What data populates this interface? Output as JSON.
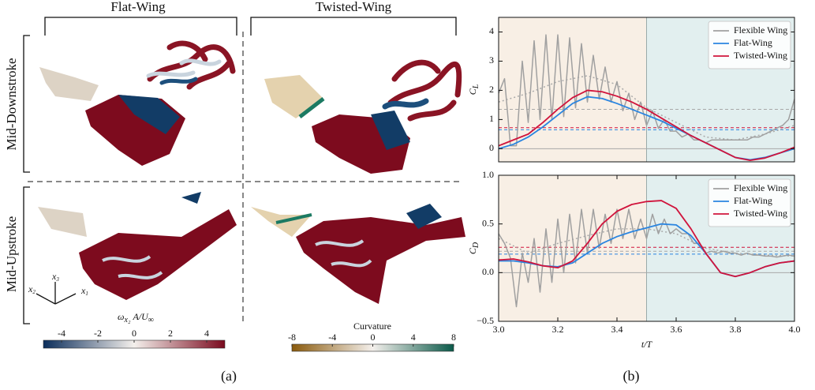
{
  "panel_a": {
    "column_titles": [
      "Flat-Wing",
      "Twisted-Wing"
    ],
    "row_titles": [
      "Mid-Downstroke",
      "Mid-Upstroke"
    ],
    "axes_triad": [
      {
        "symbol": "x",
        "index": "1"
      },
      {
        "symbol": "x",
        "index": "2"
      },
      {
        "symbol": "x",
        "index": "3"
      }
    ],
    "colorbar_vorticity": {
      "symbol": "ω",
      "sub": "x₂",
      "rest": "A/U",
      "rest_sub": "∞",
      "lim": [
        -5,
        5
      ],
      "ticks": [
        -4,
        -2,
        0,
        2,
        4
      ],
      "colors": [
        "#0b2d5b",
        "#f4f0ec",
        "#7a0a1e"
      ]
    },
    "colorbar_curvature": {
      "label": "Curvature",
      "lim": [
        -8,
        8
      ],
      "ticks": [
        -8,
        -4,
        0,
        4,
        8
      ],
      "colors": [
        "#8a5a0c",
        "#f4f0ec",
        "#0b5a4a"
      ]
    },
    "caption": "(a)"
  },
  "panel_b_caption": "(b)",
  "chart_data": [
    {
      "type": "line",
      "ylabel": "C",
      "ylabel_sub": "L",
      "xlim": [
        3.0,
        4.0
      ],
      "ylim": [
        -0.45,
        4.5
      ],
      "yticks": [
        0,
        1,
        2,
        3,
        4
      ],
      "legend": "upper right",
      "shaded_regions": [
        {
          "xlim": [
            3.0,
            3.5
          ],
          "color": "#f8efe5"
        },
        {
          "xlim": [
            3.5,
            4.0
          ],
          "color": "#e2efef"
        }
      ],
      "hlines": [
        {
          "value": 0,
          "color": "#a8a8a8",
          "style": "solid"
        },
        {
          "value": 1.35,
          "color": "#a8a8a8",
          "style": "dashed"
        },
        {
          "value": 0.72,
          "color": "#d0143c",
          "style": "dashed"
        },
        {
          "value": 0.65,
          "color": "#2a85e0",
          "style": "dashed"
        }
      ],
      "series": [
        {
          "color": "#aaaaaa",
          "style": "dotted",
          "x": [
            3.0,
            3.1,
            3.2,
            3.3,
            3.4,
            3.5,
            3.6,
            3.7,
            3.8,
            3.9,
            4.0
          ],
          "values": [
            1.6,
            1.9,
            2.3,
            2.5,
            2.2,
            1.4,
            0.9,
            0.4,
            0.3,
            0.5,
            0.8
          ]
        },
        {
          "name": "Flexible Wing",
          "color": "#a0a0a0",
          "style": "solid",
          "x": [
            3.0,
            3.02,
            3.04,
            3.06,
            3.08,
            3.1,
            3.12,
            3.14,
            3.16,
            3.18,
            3.2,
            3.22,
            3.24,
            3.26,
            3.28,
            3.3,
            3.32,
            3.34,
            3.36,
            3.38,
            3.4,
            3.42,
            3.44,
            3.46,
            3.48,
            3.5,
            3.52,
            3.54,
            3.56,
            3.58,
            3.6,
            3.62,
            3.64,
            3.66,
            3.68,
            3.7,
            3.72,
            3.74,
            3.76,
            3.78,
            3.8,
            3.82,
            3.84,
            3.86,
            3.88,
            3.9,
            3.92,
            3.94,
            3.96,
            3.98,
            4.0
          ],
          "values": [
            1.9,
            2.4,
            0.1,
            0.1,
            3.0,
            0.9,
            3.7,
            1.0,
            3.9,
            1.0,
            3.9,
            1.1,
            3.8,
            1.4,
            3.6,
            1.6,
            3.2,
            1.7,
            2.8,
            1.6,
            2.3,
            1.3,
            1.9,
            1.0,
            1.6,
            0.8,
            1.3,
            0.7,
            1.0,
            0.6,
            0.6,
            0.4,
            0.5,
            0.3,
            0.3,
            0.2,
            0.3,
            0.3,
            0.3,
            0.3,
            0.3,
            0.3,
            0.3,
            0.4,
            0.4,
            0.5,
            0.6,
            0.7,
            0.8,
            1.0,
            1.7
          ]
        },
        {
          "name": "Flat-Wing",
          "color": "#2a85e0",
          "style": "solid",
          "x": [
            3.0,
            3.05,
            3.1,
            3.15,
            3.2,
            3.25,
            3.3,
            3.35,
            3.4,
            3.45,
            3.5,
            3.55,
            3.6,
            3.65,
            3.7,
            3.75,
            3.8,
            3.85,
            3.9,
            3.95,
            4.0
          ],
          "values": [
            0.0,
            0.15,
            0.4,
            0.75,
            1.15,
            1.55,
            1.78,
            1.72,
            1.55,
            1.35,
            1.15,
            0.95,
            0.7,
            0.45,
            0.2,
            -0.05,
            -0.3,
            -0.38,
            -0.3,
            -0.15,
            0.0
          ]
        },
        {
          "name": "Twisted-Wing",
          "color": "#d0143c",
          "style": "solid",
          "x": [
            3.0,
            3.05,
            3.1,
            3.15,
            3.2,
            3.25,
            3.3,
            3.35,
            3.4,
            3.45,
            3.5,
            3.55,
            3.6,
            3.65,
            3.7,
            3.75,
            3.8,
            3.85,
            3.9,
            3.95,
            4.0
          ],
          "values": [
            0.1,
            0.3,
            0.5,
            0.9,
            1.35,
            1.75,
            2.0,
            1.95,
            1.8,
            1.6,
            1.35,
            1.05,
            0.75,
            0.45,
            0.2,
            -0.05,
            -0.3,
            -0.4,
            -0.32,
            -0.15,
            0.05
          ]
        }
      ]
    },
    {
      "type": "line",
      "ylabel": "C",
      "ylabel_sub": "D",
      "xlabel": "t/T",
      "xlim": [
        3.0,
        4.0
      ],
      "ylim": [
        -0.5,
        1.0
      ],
      "xticks": [
        {
          "value": 3.0,
          "label": "3.0"
        },
        3.2,
        3.4,
        3.6,
        3.8,
        {
          "value": 4.0,
          "label": "4.0"
        }
      ],
      "yticks": [
        {
          "value": -0.5,
          "label": "−0.5"
        },
        {
          "value": 0,
          "label": "0.0"
        },
        0.5,
        {
          "value": 1.0,
          "label": "1.0"
        }
      ],
      "legend": "upper right",
      "shaded_regions": [
        {
          "xlim": [
            3.0,
            3.5
          ],
          "color": "#f8efe5"
        },
        {
          "xlim": [
            3.5,
            4.0
          ],
          "color": "#e2efef"
        }
      ],
      "hlines": [
        {
          "value": 0,
          "color": "#a8a8a8",
          "style": "solid"
        },
        {
          "value": 0.22,
          "color": "#a8a8a8",
          "style": "dashed"
        },
        {
          "value": 0.26,
          "color": "#d0143c",
          "style": "dashed"
        },
        {
          "value": 0.19,
          "color": "#2a85e0",
          "style": "dashed"
        }
      ],
      "series": [
        {
          "color": "#aaaaaa",
          "style": "dotted",
          "x": [
            3.0,
            3.1,
            3.2,
            3.3,
            3.4,
            3.5,
            3.6,
            3.7,
            3.8,
            3.9,
            4.0
          ],
          "values": [
            0.35,
            0.2,
            0.3,
            0.38,
            0.45,
            0.45,
            0.4,
            0.25,
            0.2,
            0.18,
            0.17
          ]
        },
        {
          "name": "Flexible Wing",
          "color": "#a0a0a0",
          "style": "solid",
          "x": [
            3.0,
            3.02,
            3.04,
            3.06,
            3.08,
            3.1,
            3.12,
            3.14,
            3.16,
            3.18,
            3.2,
            3.22,
            3.24,
            3.26,
            3.28,
            3.3,
            3.32,
            3.34,
            3.36,
            3.38,
            3.4,
            3.42,
            3.44,
            3.46,
            3.48,
            3.5,
            3.52,
            3.54,
            3.56,
            3.58,
            3.6,
            3.62,
            3.64,
            3.66,
            3.68,
            3.7,
            3.72,
            3.74,
            3.76,
            3.78,
            3.8,
            3.82,
            3.84,
            3.86,
            3.88,
            3.9,
            3.92,
            3.94,
            3.96,
            3.98,
            4.0
          ],
          "values": [
            0.4,
            0.3,
            0.15,
            -0.35,
            0.2,
            -0.1,
            0.35,
            -0.2,
            0.45,
            -0.1,
            0.55,
            0.0,
            0.6,
            0.1,
            0.65,
            0.2,
            0.65,
            0.25,
            0.6,
            0.3,
            0.65,
            0.35,
            0.65,
            0.35,
            0.55,
            0.35,
            0.6,
            0.4,
            0.55,
            0.4,
            0.45,
            0.4,
            0.4,
            0.3,
            0.3,
            0.2,
            0.22,
            0.2,
            0.22,
            0.2,
            0.2,
            0.18,
            0.2,
            0.18,
            0.18,
            0.17,
            0.17,
            0.16,
            0.17,
            0.18,
            0.17
          ]
        },
        {
          "name": "Flat-Wing",
          "color": "#2a85e0",
          "style": "solid",
          "x": [
            3.0,
            3.05,
            3.1,
            3.15,
            3.2,
            3.25,
            3.3,
            3.35,
            3.4,
            3.45,
            3.5,
            3.55,
            3.6,
            3.65,
            3.7,
            3.75,
            3.8,
            3.85,
            3.9,
            3.95,
            4.0
          ],
          "values": [
            0.12,
            0.12,
            0.1,
            0.07,
            0.06,
            0.1,
            0.2,
            0.3,
            0.37,
            0.42,
            0.46,
            0.5,
            0.49,
            0.38,
            0.2,
            0.0,
            -0.04,
            0.0,
            0.06,
            0.1,
            0.12
          ]
        },
        {
          "name": "Twisted-Wing",
          "color": "#d0143c",
          "style": "solid",
          "x": [
            3.0,
            3.05,
            3.1,
            3.15,
            3.2,
            3.25,
            3.3,
            3.35,
            3.4,
            3.45,
            3.5,
            3.55,
            3.6,
            3.65,
            3.7,
            3.75,
            3.8,
            3.85,
            3.9,
            3.95,
            4.0
          ],
          "values": [
            0.13,
            0.14,
            0.11,
            0.07,
            0.05,
            0.12,
            0.3,
            0.5,
            0.63,
            0.7,
            0.73,
            0.74,
            0.66,
            0.45,
            0.2,
            0.0,
            -0.04,
            0.0,
            0.06,
            0.1,
            0.12
          ]
        }
      ]
    }
  ]
}
